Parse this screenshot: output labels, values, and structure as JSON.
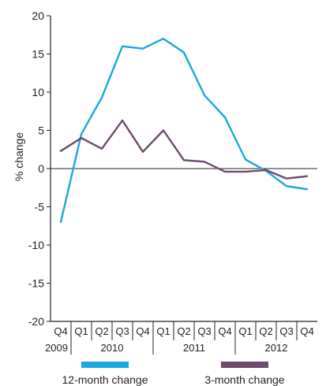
{
  "chart_data": {
    "type": "line",
    "ylabel": "% change",
    "ylim": [
      -20,
      20
    ],
    "yticks": [
      20,
      15,
      10,
      5,
      0,
      -5,
      -10,
      -15,
      -20
    ],
    "categories": [
      "Q4",
      "Q1",
      "Q2",
      "Q3",
      "Q4",
      "Q1",
      "Q2",
      "Q3",
      "Q4",
      "Q1",
      "Q2",
      "Q3",
      "Q4"
    ],
    "years": [
      {
        "label": "2009",
        "from": 0,
        "to": 0
      },
      {
        "label": "2010",
        "from": 1,
        "to": 4
      },
      {
        "label": "2011",
        "from": 5,
        "to": 8
      },
      {
        "label": "2012",
        "from": 9,
        "to": 12
      }
    ],
    "series": [
      {
        "name": "12-month change",
        "color": "#1aa7dd",
        "values": [
          -7,
          4.5,
          9.3,
          16,
          15.7,
          17,
          15.2,
          9.6,
          6.7,
          1.2,
          -0.3,
          -2.3,
          -2.7
        ]
      },
      {
        "name": "3-month change",
        "color": "#6e4a6e",
        "values": [
          2.3,
          4,
          2.6,
          6.3,
          2.2,
          5,
          1.1,
          0.9,
          -0.4,
          -0.4,
          -0.2,
          -1.3,
          -1
        ]
      }
    ],
    "legend_position": "bottom",
    "grid": false
  }
}
